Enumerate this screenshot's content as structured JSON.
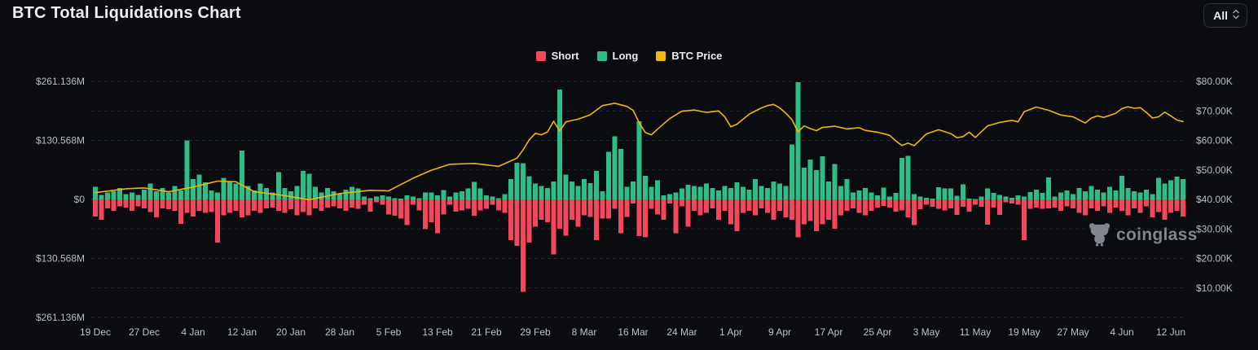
{
  "header": {
    "title": "BTC Total Liquidations Chart",
    "range_selector": {
      "value": "All"
    }
  },
  "legend": [
    {
      "label": "Short",
      "color": "#f5465c"
    },
    {
      "label": "Long",
      "color": "#2ebd85"
    },
    {
      "label": "BTC Price",
      "color": "#f0b90b"
    }
  ],
  "watermark": {
    "text": "coinglass"
  },
  "chart_data": {
    "type": "bar",
    "subtype": "mirrored-bars-with-price-line",
    "title": "BTC Total Liquidations Chart",
    "grid": "dashed-horizontal",
    "legend_position": "top-center",
    "colors": {
      "long": "#2ebd85",
      "short": "#f5465c",
      "price": "#eeb60d"
    },
    "left_axis": {
      "unit": "USD millions (liquidations, mirrored around $0)",
      "tick_labels": [
        "$261.136M",
        "$130.568M",
        "$0",
        "$130.568M",
        "$261.136M"
      ],
      "max_abs_m": 261.136
    },
    "right_axis": {
      "unit": "BTC price USD thousands",
      "tick_labels": [
        "$80.00K",
        "$70.00K",
        "$60.00K",
        "$50.00K",
        "$40.00K",
        "$30.00K",
        "$20.00K",
        "$10.00K"
      ],
      "top_k": 80,
      "k_per_gridline": 10
    },
    "x_tick_labels": [
      "19 Dec",
      "27 Dec",
      "4 Jan",
      "12 Jan",
      "20 Jan",
      "28 Jan",
      "5 Feb",
      "13 Feb",
      "21 Feb",
      "29 Feb",
      "8 Mar",
      "16 Mar",
      "24 Mar",
      "1 Apr",
      "9 Apr",
      "17 Apr",
      "25 Apr",
      "3 May",
      "11 May",
      "19 May",
      "27 May",
      "4 Jun",
      "12 Jun"
    ],
    "x_tick_step_days": 8,
    "series": {
      "long_m": [
        28,
        10,
        15,
        18,
        25,
        12,
        15,
        10,
        22,
        35,
        18,
        25,
        15,
        30,
        20,
        131,
        45,
        55,
        38,
        20,
        15,
        48,
        40,
        35,
        108,
        30,
        20,
        35,
        25,
        15,
        60,
        25,
        18,
        30,
        63,
        57,
        28,
        15,
        25,
        18,
        12,
        22,
        28,
        24,
        6,
        3,
        6,
        9,
        6,
        3,
        2,
        9,
        6,
        3,
        15,
        15,
        9,
        21,
        6,
        15,
        18,
        24,
        39,
        24,
        9,
        6,
        3,
        12,
        45,
        81,
        80,
        51,
        35,
        30,
        25,
        40,
        243,
        55,
        40,
        30,
        45,
        36,
        63,
        18,
        105,
        140,
        112,
        28,
        40,
        173,
        52,
        28,
        42,
        9,
        12,
        15,
        24,
        32,
        30,
        28,
        35,
        25,
        20,
        30,
        25,
        38,
        28,
        22,
        45,
        30,
        25,
        40,
        35,
        30,
        122,
        259,
        70,
        88,
        65,
        95,
        40,
        78,
        30,
        45,
        15,
        20,
        25,
        15,
        9,
        26,
        6,
        14,
        92,
        96,
        12,
        6,
        4,
        2,
        27,
        24,
        24,
        8,
        33,
        2,
        1,
        6,
        24,
        14,
        10,
        6,
        4,
        9,
        6,
        16,
        22,
        14,
        49,
        6,
        15,
        20,
        12,
        25,
        18,
        30,
        22,
        15,
        28,
        20,
        52,
        25,
        18,
        15,
        22,
        12,
        48,
        35,
        42,
        50,
        45
      ],
      "short_m": [
        38,
        45,
        20,
        25,
        15,
        18,
        25,
        15,
        20,
        28,
        40,
        20,
        22,
        25,
        54,
        30,
        38,
        25,
        30,
        28,
        95,
        35,
        30,
        25,
        40,
        35,
        25,
        30,
        20,
        18,
        25,
        30,
        22,
        35,
        28,
        35,
        20,
        25,
        18,
        15,
        20,
        25,
        18,
        21,
        12,
        27,
        6,
        12,
        33,
        36,
        42,
        57,
        12,
        24,
        66,
        50,
        75,
        33,
        12,
        27,
        24,
        21,
        36,
        24,
        21,
        12,
        24,
        30,
        90,
        103,
        204,
        95,
        60,
        45,
        50,
        122,
        65,
        80,
        45,
        60,
        35,
        39,
        90,
        42,
        42,
        21,
        75,
        39,
        9,
        81,
        84,
        21,
        33,
        45,
        9,
        75,
        15,
        60,
        25,
        35,
        30,
        20,
        45,
        25,
        55,
        70,
        30,
        25,
        35,
        20,
        30,
        45,
        25,
        40,
        45,
        84,
        55,
        48,
        70,
        55,
        45,
        65,
        35,
        25,
        20,
        30,
        35,
        25,
        18,
        14,
        18,
        27,
        24,
        40,
        57,
        22,
        12,
        16,
        21,
        24,
        20,
        34,
        16,
        27,
        12,
        16,
        56,
        18,
        34,
        6,
        9,
        12,
        90,
        21,
        18,
        21,
        20,
        18,
        25,
        15,
        20,
        30,
        35,
        20,
        25,
        15,
        30,
        18,
        25,
        35,
        20,
        30,
        15,
        40,
        28,
        45,
        30,
        25,
        38
      ],
      "btc_price_k_anchors": [
        [
          0,
          42.3
        ],
        [
          5,
          43.6
        ],
        [
          8,
          43.9
        ],
        [
          12,
          42.6
        ],
        [
          16,
          44.2
        ],
        [
          20,
          46.2
        ],
        [
          23,
          46.0
        ],
        [
          26,
          42.6
        ],
        [
          30,
          41.6
        ],
        [
          35,
          39.9
        ],
        [
          40,
          42.0
        ],
        [
          45,
          43.1
        ],
        [
          48,
          42.9
        ],
        [
          52,
          47.2
        ],
        [
          55,
          49.9
        ],
        [
          58,
          51.9
        ],
        [
          62,
          52.2
        ],
        [
          66,
          51.2
        ],
        [
          69,
          54.0
        ],
        [
          70,
          56.8
        ],
        [
          71,
          60.2
        ],
        [
          72,
          62.4
        ],
        [
          73,
          61.9
        ],
        [
          74,
          62.9
        ],
        [
          75,
          66.5
        ],
        [
          76,
          63.2
        ],
        [
          77,
          66.3
        ],
        [
          79,
          67.2
        ],
        [
          81,
          68.7
        ],
        [
          83,
          71.8
        ],
        [
          85,
          72.6
        ],
        [
          87,
          71.5
        ],
        [
          88,
          70.2
        ],
        [
          89,
          66.0
        ],
        [
          90,
          62.7
        ],
        [
          91,
          61.9
        ],
        [
          92,
          63.8
        ],
        [
          94,
          67.4
        ],
        [
          96,
          69.9
        ],
        [
          98,
          70.3
        ],
        [
          100,
          69.5
        ],
        [
          102,
          70.0
        ],
        [
          103,
          68.0
        ],
        [
          104,
          64.6
        ],
        [
          105,
          65.5
        ],
        [
          107,
          68.9
        ],
        [
          109,
          71.0
        ],
        [
          110,
          71.8
        ],
        [
          111,
          72.2
        ],
        [
          112,
          71.0
        ],
        [
          113,
          69.2
        ],
        [
          114,
          67.0
        ],
        [
          115,
          62.9
        ],
        [
          116,
          64.9
        ],
        [
          117,
          64.0
        ],
        [
          118,
          63.3
        ],
        [
          119,
          64.4
        ],
        [
          121,
          64.8
        ],
        [
          123,
          63.9
        ],
        [
          125,
          64.3
        ],
        [
          126,
          63.4
        ],
        [
          128,
          62.8
        ],
        [
          130,
          61.7
        ],
        [
          131,
          59.8
        ],
        [
          132,
          58.3
        ],
        [
          133,
          59.1
        ],
        [
          134,
          58.2
        ],
        [
          136,
          62.2
        ],
        [
          138,
          63.6
        ],
        [
          140,
          62.3
        ],
        [
          141,
          60.9
        ],
        [
          142,
          61.3
        ],
        [
          143,
          62.8
        ],
        [
          144,
          61.0
        ],
        [
          146,
          64.9
        ],
        [
          148,
          66.1
        ],
        [
          150,
          66.8
        ],
        [
          151,
          66.3
        ],
        [
          152,
          69.7
        ],
        [
          154,
          71.3
        ],
        [
          156,
          70.2
        ],
        [
          158,
          68.6
        ],
        [
          160,
          68.0
        ],
        [
          162,
          65.9
        ],
        [
          163,
          67.6
        ],
        [
          164,
          68.3
        ],
        [
          165,
          67.8
        ],
        [
          167,
          69.2
        ],
        [
          168,
          70.8
        ],
        [
          169,
          71.4
        ],
        [
          170,
          70.9
        ],
        [
          171,
          71.1
        ],
        [
          172,
          69.5
        ],
        [
          173,
          67.6
        ],
        [
          174,
          68.0
        ],
        [
          175,
          69.6
        ],
        [
          176,
          68.3
        ],
        [
          177,
          66.9
        ],
        [
          178,
          66.4
        ]
      ]
    }
  }
}
